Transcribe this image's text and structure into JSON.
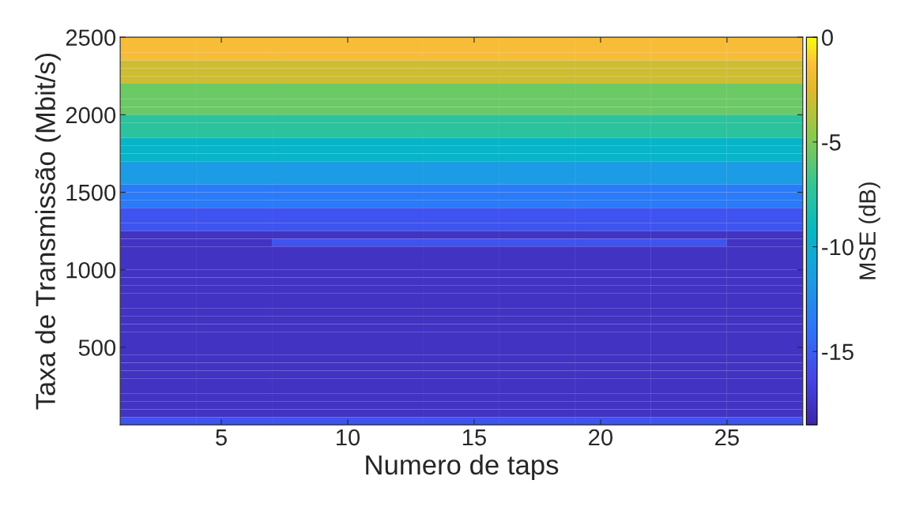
{
  "chart_data": {
    "type": "heatmap",
    "xlabel": "Numero de taps",
    "ylabel": "Taxa de Transmissão (Mbit/s)",
    "clabel": "MSE (dB)",
    "xlim": [
      1,
      28
    ],
    "xticks": [
      5,
      10,
      15,
      20,
      25
    ],
    "ylim": [
      0,
      2500
    ],
    "yticks": [
      500,
      1000,
      1500,
      2000,
      2500
    ],
    "clim": [
      -18.5,
      0
    ],
    "cticks": [
      -15,
      -10,
      -5,
      0
    ],
    "cells": [
      [
        -1.5,
        -1.5,
        -1.5,
        -1.5,
        -1.5,
        -1.5,
        -1.5,
        -1.5,
        -1.5
      ],
      [
        -1.5,
        -1.5,
        -1.5,
        -1.5,
        -1.5,
        -1.5,
        -1.5,
        -1.5,
        -1.5
      ],
      [
        -1.5,
        -1.5,
        -1.5,
        -1.5,
        -1.5,
        -1.5,
        -1.5,
        -1.5,
        -1.5
      ],
      [
        -3,
        -3,
        -3,
        -3,
        -3,
        -3,
        -3,
        -3,
        -3
      ],
      [
        -3,
        -3,
        -3,
        -3,
        -3,
        -3,
        -3,
        -3,
        -3
      ],
      [
        -3,
        -3,
        -3,
        -3,
        -3,
        -3,
        -3,
        -3,
        -3
      ],
      [
        -5.5,
        -5.5,
        -5.5,
        -5.5,
        -5.5,
        -5.5,
        -5.5,
        -5.5,
        -5.5
      ],
      [
        -5.5,
        -5.5,
        -5.5,
        -5.5,
        -5.5,
        -5.5,
        -5.5,
        -5.5,
        -5.5
      ],
      [
        -5.5,
        -5.5,
        -5.5,
        -5.5,
        -5.5,
        -5.5,
        -5.5,
        -5.5,
        -5.5
      ],
      [
        -5.5,
        -5.5,
        -5.5,
        -5.5,
        -5.5,
        -5.5,
        -5.5,
        -5.5,
        -5.5
      ],
      [
        -7.5,
        -7.5,
        -7.5,
        -7.5,
        -7.5,
        -7.5,
        -7.5,
        -7.5,
        -7.5
      ],
      [
        -7.5,
        -7.5,
        -7.5,
        -7.5,
        -7.5,
        -7.5,
        -7.5,
        -7.5,
        -7.5
      ],
      [
        -7.5,
        -7.5,
        -7.5,
        -7.5,
        -7.5,
        -7.5,
        -7.5,
        -7.5,
        -7.5
      ],
      [
        -9.5,
        -9.5,
        -9.5,
        -9.5,
        -9.5,
        -9.5,
        -9.5,
        -9.5,
        -9.5
      ],
      [
        -9.5,
        -9.5,
        -9.5,
        -9.5,
        -9.5,
        -9.5,
        -9.5,
        -9.5,
        -9.5
      ],
      [
        -9.5,
        -9.5,
        -9.5,
        -9.5,
        -9.5,
        -9.5,
        -9.5,
        -9.5,
        -9.5
      ],
      [
        -11.5,
        -11.5,
        -11.5,
        -11.5,
        -11.5,
        -11.5,
        -11.5,
        -11.5,
        -11.5
      ],
      [
        -11.5,
        -11.5,
        -11.5,
        -11.5,
        -11.5,
        -11.5,
        -11.5,
        -11.5,
        -11.5
      ],
      [
        -11.5,
        -11.5,
        -11.5,
        -11.5,
        -11.5,
        -11.5,
        -11.5,
        -11.5,
        -11.5
      ],
      [
        -13.5,
        -13.5,
        -13.5,
        -13.5,
        -13.5,
        -13.5,
        -13.5,
        -13.5,
        -13.5
      ],
      [
        -13.5,
        -13.5,
        -13.5,
        -13.5,
        -13.5,
        -13.5,
        -13.5,
        -13.5,
        -13.5
      ],
      [
        -13.5,
        -13.5,
        -13.5,
        -13.5,
        -13.5,
        -13.5,
        -13.5,
        -13.5,
        -13.5
      ],
      [
        -15.5,
        -15.5,
        -15.5,
        -15.5,
        -15.5,
        -15.5,
        -15.5,
        -15.5,
        -15.5
      ],
      [
        -15.5,
        -15.5,
        -15.5,
        -15.5,
        -15.5,
        -15.5,
        -15.5,
        -15.5,
        -15.5
      ],
      [
        -15.5,
        -15.5,
        -15.5,
        -15.5,
        -15.5,
        -15.5,
        -15.5,
        -15.5,
        -15.5
      ],
      [
        -17.5,
        -17.5,
        -17.5,
        -17.5,
        -17.5,
        -17.5,
        -17.5,
        -17.5,
        -17.5
      ],
      [
        -17.5,
        -17.5,
        -15.5,
        -15.5,
        -15.5,
        -15.5,
        -15.5,
        -15.5,
        -17.5
      ],
      [
        -17.5,
        -17.5,
        -17.5,
        -17.5,
        -17.5,
        -17.5,
        -17.5,
        -17.5,
        -17.5
      ],
      [
        -17.5,
        -17.5,
        -17.5,
        -17.5,
        -17.5,
        -17.5,
        -17.5,
        -17.5,
        -17.5
      ],
      [
        -17.5,
        -17.5,
        -17.5,
        -17.5,
        -17.5,
        -17.5,
        -17.5,
        -17.5,
        -17.5
      ],
      [
        -17.5,
        -17.5,
        -17.5,
        -17.5,
        -17.5,
        -17.5,
        -17.5,
        -17.5,
        -17.5
      ],
      [
        -17.5,
        -17.5,
        -17.5,
        -17.5,
        -17.5,
        -17.5,
        -17.5,
        -17.5,
        -17.5
      ],
      [
        -17.5,
        -17.5,
        -17.5,
        -17.5,
        -17.5,
        -17.5,
        -17.5,
        -17.5,
        -17.5
      ],
      [
        -17.5,
        -17.5,
        -17.5,
        -17.5,
        -17.5,
        -17.5,
        -17.5,
        -17.5,
        -17.5
      ],
      [
        -17.5,
        -17.5,
        -17.5,
        -17.5,
        -17.5,
        -17.5,
        -17.5,
        -17.5,
        -17.5
      ],
      [
        -17.5,
        -17.5,
        -17.5,
        -17.5,
        -17.5,
        -17.5,
        -17.5,
        -17.5,
        -17.5
      ],
      [
        -17.5,
        -17.5,
        -17.5,
        -17.5,
        -17.5,
        -17.5,
        -17.5,
        -17.5,
        -17.5
      ],
      [
        -17.5,
        -17.5,
        -17.5,
        -17.5,
        -17.5,
        -17.5,
        -17.5,
        -17.5,
        -17.5
      ],
      [
        -17.5,
        -17.5,
        -17.5,
        -17.5,
        -17.5,
        -17.5,
        -17.5,
        -17.5,
        -17.5
      ],
      [
        -17.5,
        -17.5,
        -17.5,
        -17.5,
        -17.5,
        -17.5,
        -17.5,
        -17.5,
        -17.5
      ],
      [
        -17.5,
        -17.5,
        -17.5,
        -17.5,
        -17.5,
        -17.5,
        -17.5,
        -17.5,
        -17.5
      ],
      [
        -17.5,
        -17.5,
        -17.5,
        -17.5,
        -17.5,
        -17.5,
        -17.5,
        -17.5,
        -17.5
      ],
      [
        -17.5,
        -17.5,
        -17.5,
        -17.5,
        -17.5,
        -17.5,
        -17.5,
        -17.5,
        -17.5
      ],
      [
        -17.5,
        -17.5,
        -17.5,
        -17.5,
        -17.5,
        -17.5,
        -17.5,
        -17.5,
        -17.5
      ],
      [
        -17.5,
        -17.5,
        -17.5,
        -17.5,
        -17.5,
        -17.5,
        -17.5,
        -17.5,
        -17.5
      ],
      [
        -17.5,
        -17.5,
        -17.5,
        -17.5,
        -17.5,
        -17.5,
        -17.5,
        -17.5,
        -17.5
      ],
      [
        -17.5,
        -17.5,
        -17.5,
        -17.5,
        -17.5,
        -17.5,
        -17.5,
        -17.5,
        -17.5
      ],
      [
        -17.5,
        -17.5,
        -17.5,
        -17.5,
        -17.5,
        -17.5,
        -17.5,
        -17.5,
        -17.5
      ],
      [
        -17.5,
        -17.5,
        -17.5,
        -17.5,
        -17.5,
        -17.5,
        -17.5,
        -17.5,
        -17.5
      ],
      [
        -15.5,
        -15.5,
        -15.5,
        -15.5,
        -15.5,
        -15.5,
        -15.5,
        -15.5,
        -15.5
      ]
    ]
  }
}
